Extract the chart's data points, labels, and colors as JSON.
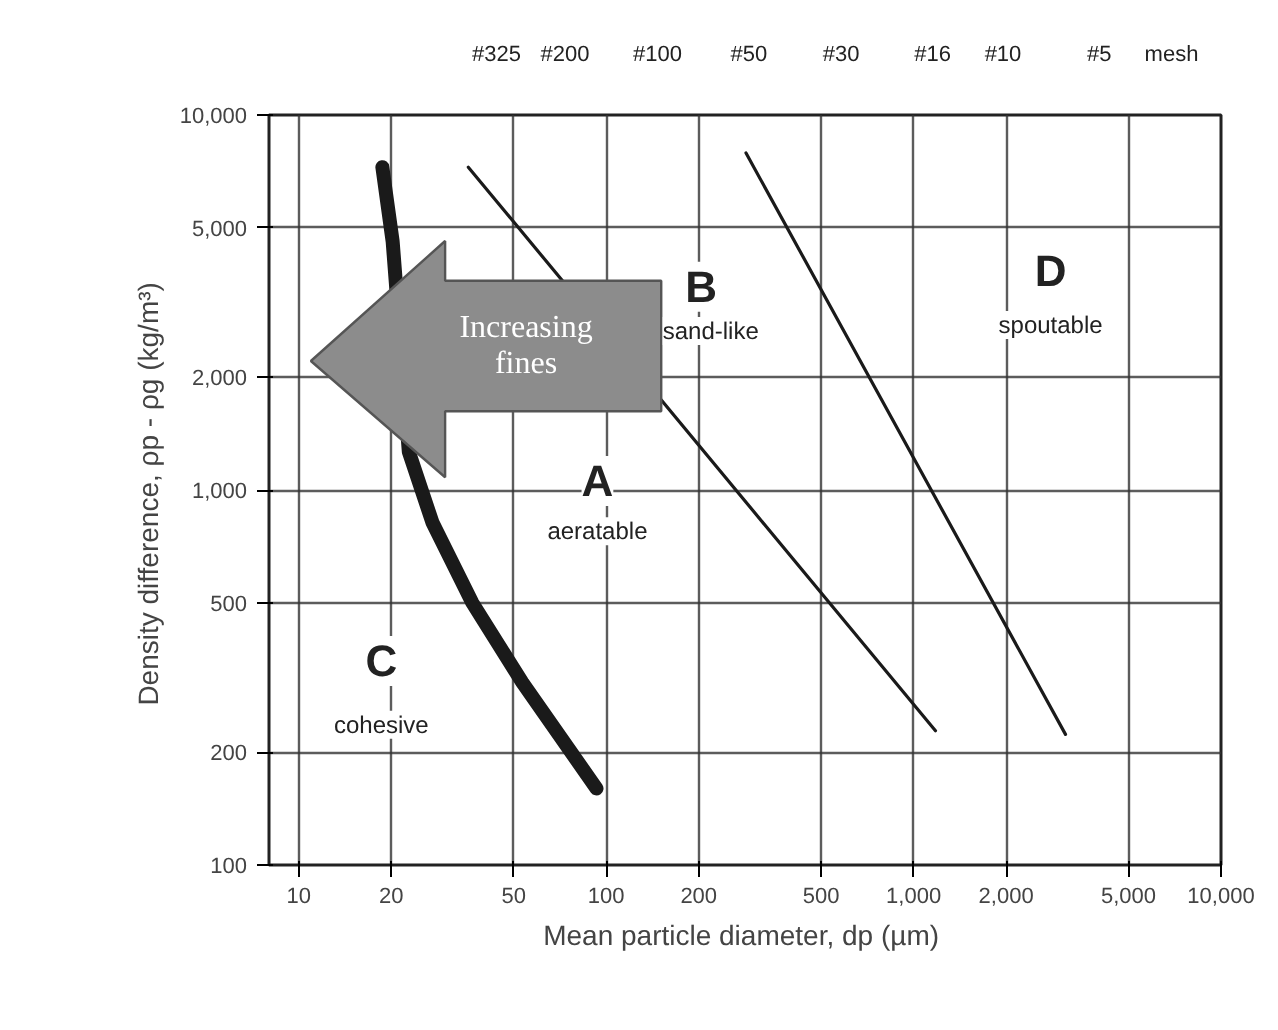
{
  "chart_data": {
    "type": "line",
    "xlabel": "Mean particle diameter, dp  (µm)",
    "ylabel": "Density difference, ρp - ρg  (kg/m³)",
    "log": "xy",
    "grid": true,
    "marker": "none",
    "line_style": "solid",
    "xlim": [
      8,
      10000
    ],
    "ylim": [
      100,
      10000
    ],
    "xticks": [
      10,
      20,
      50,
      100,
      200,
      500,
      {
        "value": 1000,
        "label": "1,000"
      },
      {
        "value": 2000,
        "label": "2,000"
      },
      {
        "value": 5000,
        "label": "5,000"
      },
      {
        "value": 10000,
        "label": "10,000"
      }
    ],
    "yticks": [
      100,
      200,
      500,
      {
        "value": 1000,
        "label": "1,000"
      },
      {
        "value": 2000,
        "label": "2,000"
      },
      {
        "value": 5000,
        "label": "5,000"
      },
      {
        "value": 10000,
        "label": "10,000"
      }
    ],
    "series": [
      {
        "color": "#1a1a1a",
        "x": [
          18.7,
          20.2,
          22.8,
          27.2,
          36.7,
          53.3,
          93
        ],
        "values": [
          7260,
          4600,
          1265,
          820,
          500,
          307,
          160
        ]
      },
      {
        "color": "#1a1a1a",
        "x": [
          35.6,
          1178
        ],
        "values": [
          7260,
          228
        ]
      },
      {
        "color": "#1a1a1a",
        "x": [
          285,
          3120
        ],
        "values": [
          7920,
          223
        ]
      }
    ],
    "annotations": [
      "A",
      "aeratable",
      "B",
      "sand-like",
      "C",
      "cohesive",
      "D",
      "spoutable",
      "#325",
      "#200",
      "#100",
      "#50",
      "#30",
      "#16",
      "#10",
      "#5",
      "mesh",
      "Increasing fines"
    ]
  }
}
